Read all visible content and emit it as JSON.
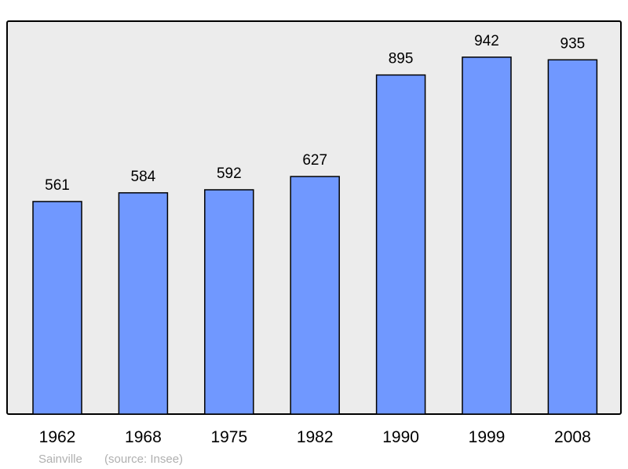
{
  "chart_data": {
    "type": "bar",
    "categories": [
      "1962",
      "1968",
      "1975",
      "1982",
      "1990",
      "1999",
      "2008"
    ],
    "values": [
      561,
      584,
      592,
      627,
      895,
      942,
      935
    ],
    "data_labels": [
      "561",
      "584",
      "592",
      "627",
      "895",
      "942",
      "935"
    ],
    "title": "",
    "xlabel": "",
    "ylabel": "",
    "ylim": [
      0,
      1037
    ],
    "grid": false,
    "colors": {
      "bar": "#7098ff",
      "background": "#ececec",
      "border": "#000000"
    }
  },
  "footer": {
    "place": "Sainville",
    "source": "(source: Insee)"
  }
}
